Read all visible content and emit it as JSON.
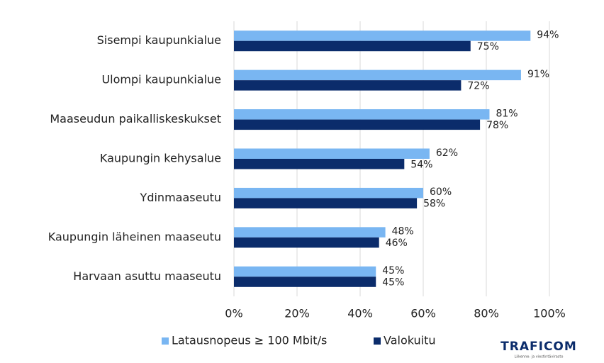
{
  "chart_data": {
    "type": "hbar",
    "categories": [
      "Sisempi kaupunkialue",
      "Ulompi kaupunkialue",
      "Maaseudun paikalliskeskukset",
      "Kaupungin kehysalue",
      "Ydinmaaseutu",
      "Kaupungin läheinen maaseutu",
      "Harvaan asuttu maaseutu"
    ],
    "series": [
      {
        "name": "Latausnopeus ≥ 100 Mbit/s",
        "color": "#79b6f2",
        "values": [
          94,
          91,
          81,
          62,
          60,
          48,
          45
        ],
        "value_labels": [
          "94%",
          "91%",
          "81%",
          "62%",
          "60%",
          "48%",
          "45%"
        ]
      },
      {
        "name": "Valokuitu",
        "color": "#0b2c6b",
        "values": [
          75,
          72,
          78,
          54,
          58,
          46,
          45
        ],
        "value_labels": [
          "75%",
          "72%",
          "78%",
          "54%",
          "58%",
          "46%",
          "45%"
        ]
      }
    ],
    "xlim": [
      0,
      100
    ],
    "xticks": [
      {
        "value": 0,
        "label": "0%"
      },
      {
        "value": 20,
        "label": "20%"
      },
      {
        "value": 40,
        "label": "40%"
      },
      {
        "value": 60,
        "label": "60%"
      },
      {
        "value": 80,
        "label": "80%"
      },
      {
        "value": 100,
        "label": "100%"
      }
    ],
    "grid": true,
    "legend": "bottom"
  },
  "logo": {
    "name": "TRAFICOM",
    "tagline": "Liikenne- ja viestintävirasto"
  }
}
